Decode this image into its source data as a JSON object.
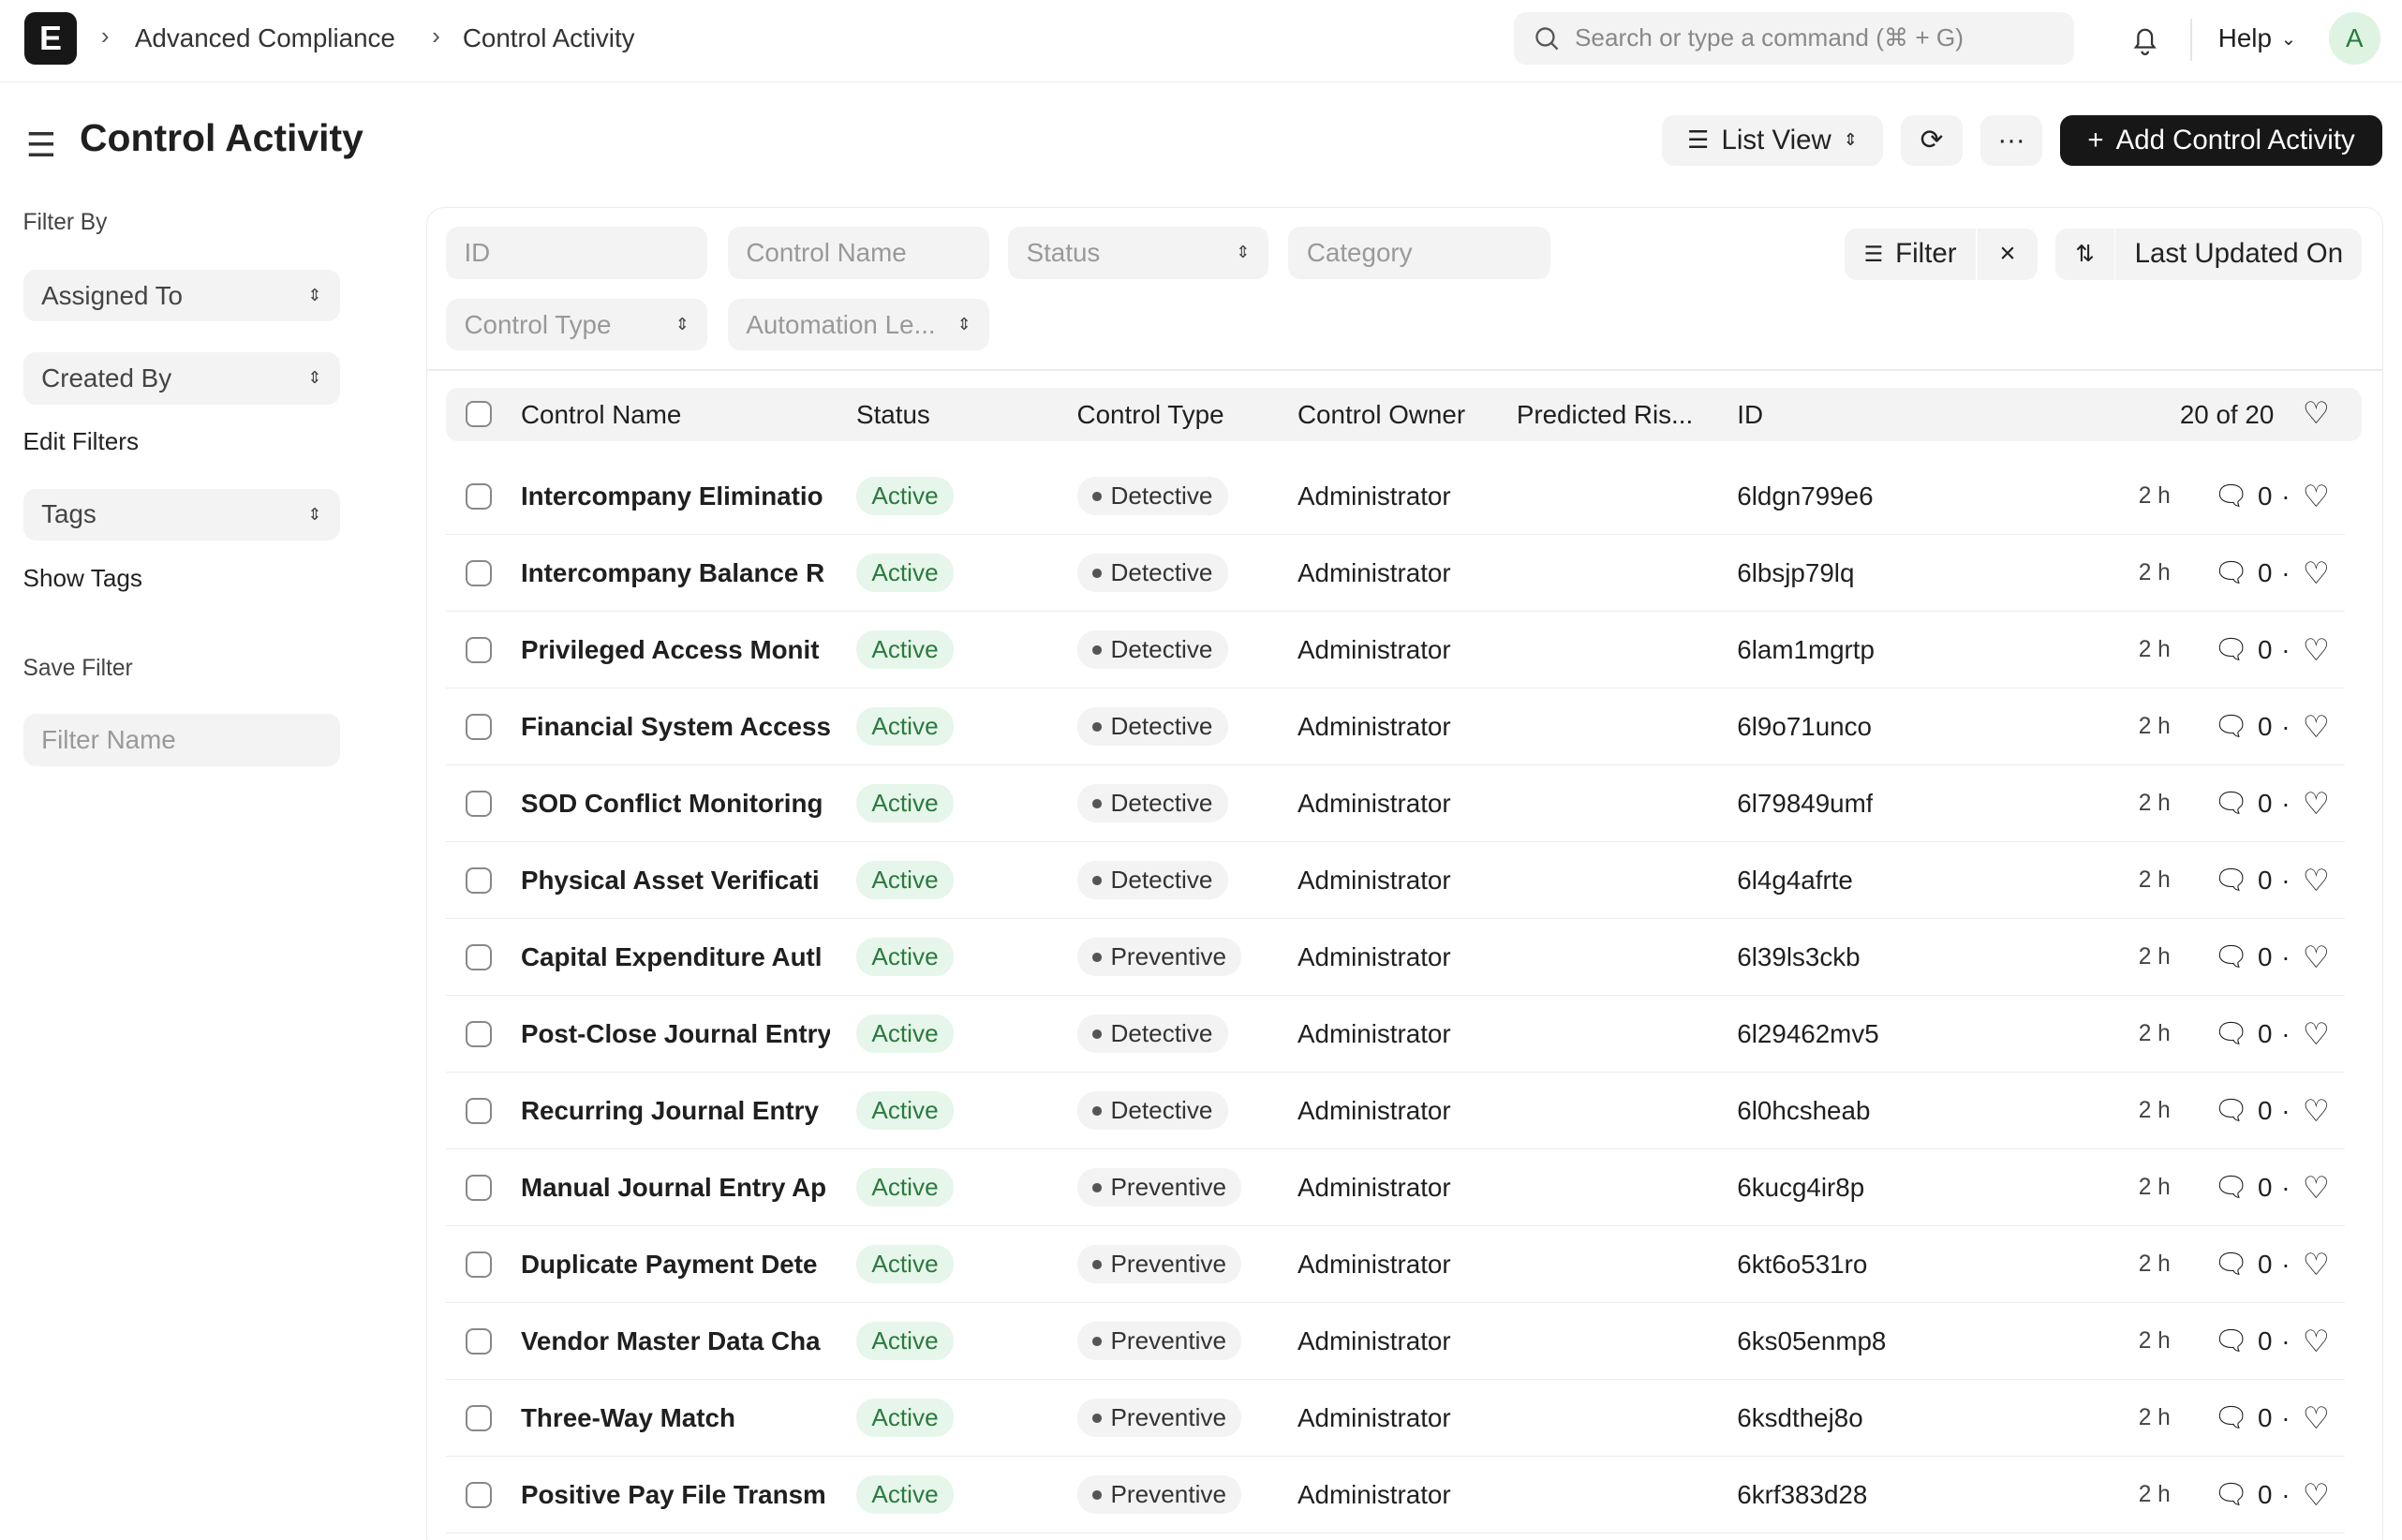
{
  "navbar": {
    "logo": "E",
    "breadcrumbs": [
      "Advanced Compliance",
      "Control Activity"
    ],
    "search_placeholder": "Search or type a command (⌘ + G)",
    "help": "Help",
    "avatar": "A"
  },
  "page": {
    "title": "Control Activity",
    "list_view": "List View",
    "add_button": "Add Control Activity",
    "more": "···"
  },
  "sidebar": {
    "filter_by": "Filter By",
    "assigned_to": "Assigned To",
    "created_by": "Created By",
    "edit_filters": "Edit Filters",
    "tags": "Tags",
    "show_tags": "Show Tags",
    "save_filter": "Save Filter",
    "filter_name_placeholder": "Filter Name"
  },
  "filters": {
    "id": "ID",
    "control_name": "Control Name",
    "status": "Status",
    "category": "Category",
    "control_type": "Control Type",
    "automation_level": "Automation Le...",
    "filter": "Filter",
    "sort": "Last Updated On"
  },
  "table": {
    "columns": [
      "Control Name",
      "Status",
      "Control Type",
      "Control Owner",
      "Predicted Ris...",
      "ID"
    ],
    "count": "20 of 20",
    "rows": [
      {
        "name": "Intercompany Eliminatio",
        "status": "Active",
        "type": "Detective",
        "owner": "Administrator",
        "id": "6ldgn799e6",
        "time": "2 h",
        "comments": "0"
      },
      {
        "name": "Intercompany Balance R",
        "status": "Active",
        "type": "Detective",
        "owner": "Administrator",
        "id": "6lbsjp79lq",
        "time": "2 h",
        "comments": "0"
      },
      {
        "name": "Privileged Access Monit",
        "status": "Active",
        "type": "Detective",
        "owner": "Administrator",
        "id": "6lam1mgrtp",
        "time": "2 h",
        "comments": "0"
      },
      {
        "name": "Financial System Access",
        "status": "Active",
        "type": "Detective",
        "owner": "Administrator",
        "id": "6l9o71unco",
        "time": "2 h",
        "comments": "0"
      },
      {
        "name": "SOD Conflict Monitoring",
        "status": "Active",
        "type": "Detective",
        "owner": "Administrator",
        "id": "6l79849umf",
        "time": "2 h",
        "comments": "0"
      },
      {
        "name": "Physical Asset Verificati",
        "status": "Active",
        "type": "Detective",
        "owner": "Administrator",
        "id": "6l4g4afrte",
        "time": "2 h",
        "comments": "0"
      },
      {
        "name": "Capital Expenditure Autl",
        "status": "Active",
        "type": "Preventive",
        "owner": "Administrator",
        "id": "6l39ls3ckb",
        "time": "2 h",
        "comments": "0"
      },
      {
        "name": "Post-Close Journal Entry",
        "status": "Active",
        "type": "Detective",
        "owner": "Administrator",
        "id": "6l29462mv5",
        "time": "2 h",
        "comments": "0"
      },
      {
        "name": "Recurring Journal Entry",
        "status": "Active",
        "type": "Detective",
        "owner": "Administrator",
        "id": "6l0hcsheab",
        "time": "2 h",
        "comments": "0"
      },
      {
        "name": "Manual Journal Entry Ap",
        "status": "Active",
        "type": "Preventive",
        "owner": "Administrator",
        "id": "6kucg4ir8p",
        "time": "2 h",
        "comments": "0"
      },
      {
        "name": "Duplicate Payment Dete",
        "status": "Active",
        "type": "Preventive",
        "owner": "Administrator",
        "id": "6kt6o531ro",
        "time": "2 h",
        "comments": "0"
      },
      {
        "name": "Vendor Master Data Cha",
        "status": "Active",
        "type": "Preventive",
        "owner": "Administrator",
        "id": "6ks05enmp8",
        "time": "2 h",
        "comments": "0"
      },
      {
        "name": "Three-Way Match",
        "status": "Active",
        "type": "Preventive",
        "owner": "Administrator",
        "id": "6ksdthej8o",
        "time": "2 h",
        "comments": "0"
      },
      {
        "name": "Positive Pay File Transm",
        "status": "Active",
        "type": "Preventive",
        "owner": "Administrator",
        "id": "6krf383d28",
        "time": "2 h",
        "comments": "0"
      }
    ]
  },
  "colors": {
    "accent": "#171717",
    "active_bg": "#e6f6ea",
    "active_text": "#2b7a3f"
  }
}
